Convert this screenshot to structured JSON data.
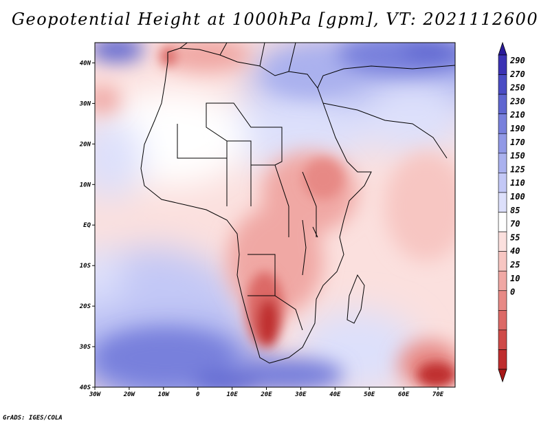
{
  "title": "Geopotential Height at 1000hPa [gpm], VT: 2021112600",
  "footer": "GrADS: IGES/COLA",
  "map": {
    "lon_range": [
      -30,
      75
    ],
    "lat_range": [
      -40,
      45
    ],
    "lon_ticks": [
      "30W",
      "20W",
      "10W",
      "0",
      "10E",
      "20E",
      "30E",
      "40E",
      "50E",
      "60E",
      "70E"
    ],
    "lat_ticks": [
      "40N",
      "30N",
      "20N",
      "10N",
      "EQ",
      "10S",
      "20S",
      "30S",
      "40S"
    ]
  },
  "colorbar": {
    "labels": [
      "290",
      "270",
      "250",
      "230",
      "210",
      "190",
      "170",
      "150",
      "125",
      "110",
      "100",
      "85",
      "70",
      "55",
      "40",
      "25",
      "10",
      "0"
    ],
    "colors": [
      "#2a1a9a",
      "#3b32b4",
      "#4a4cc4",
      "#5f66d0",
      "#7880dc",
      "#9199e6",
      "#aab1ee",
      "#c3c8f6",
      "#dde0fb",
      "#ffffff",
      "#fbe0de",
      "#f7c6c2",
      "#f0a8a4",
      "#e78985",
      "#dc6966",
      "#cf4a48",
      "#bf2d2e",
      "#a81818"
    ]
  }
}
